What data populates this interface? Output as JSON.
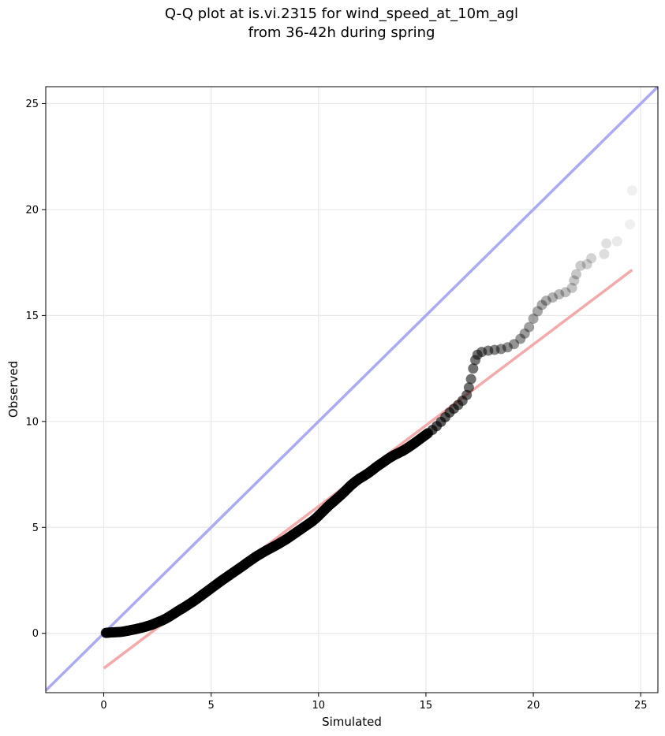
{
  "chart_data": {
    "type": "scatter",
    "title_line1": "Q-Q plot at is.vi.2315 for wind_speed_at_10m_agl",
    "title_line2": "from 36-42h during spring",
    "xlabel": "Simulated",
    "ylabel": "Observed",
    "xlim": [
      -2.7,
      25.8
    ],
    "ylim": [
      -2.8,
      25.8
    ],
    "xticks": [
      0,
      5,
      10,
      15,
      20,
      25
    ],
    "yticks": [
      0,
      5,
      10,
      15,
      20,
      25
    ],
    "grid": true,
    "colors": {
      "points": "#000000",
      "identity_line": "#aaaaf5",
      "fit_line": "#f5aaaa",
      "grid": "#e8e8e8"
    },
    "identity_line": {
      "x": [
        -2.7,
        25.8
      ],
      "y": [
        -2.7,
        25.8
      ]
    },
    "fit_line": {
      "x": [
        0.0,
        24.6
      ],
      "y": [
        -1.65,
        17.15
      ]
    },
    "quantiles": [
      [
        0.1,
        0.02
      ],
      [
        0.3,
        0.04
      ],
      [
        0.5,
        0.05
      ],
      [
        0.7,
        0.06
      ],
      [
        0.9,
        0.08
      ],
      [
        1.1,
        0.12
      ],
      [
        1.3,
        0.16
      ],
      [
        1.5,
        0.2
      ],
      [
        1.7,
        0.25
      ],
      [
        1.9,
        0.3
      ],
      [
        2.1,
        0.36
      ],
      [
        2.3,
        0.43
      ],
      [
        2.5,
        0.52
      ],
      [
        2.7,
        0.6
      ],
      [
        2.9,
        0.7
      ],
      [
        3.1,
        0.82
      ],
      [
        3.3,
        0.95
      ],
      [
        3.5,
        1.08
      ],
      [
        3.7,
        1.2
      ],
      [
        3.9,
        1.33
      ],
      [
        4.1,
        1.46
      ],
      [
        4.3,
        1.6
      ],
      [
        4.5,
        1.75
      ],
      [
        4.7,
        1.9
      ],
      [
        4.9,
        2.05
      ],
      [
        5.1,
        2.2
      ],
      [
        5.3,
        2.35
      ],
      [
        5.5,
        2.5
      ],
      [
        5.7,
        2.64
      ],
      [
        5.9,
        2.78
      ],
      [
        6.1,
        2.92
      ],
      [
        6.3,
        3.06
      ],
      [
        6.5,
        3.2
      ],
      [
        6.7,
        3.35
      ],
      [
        6.9,
        3.49
      ],
      [
        7.1,
        3.63
      ],
      [
        7.3,
        3.75
      ],
      [
        7.5,
        3.87
      ],
      [
        7.7,
        3.98
      ],
      [
        7.9,
        4.09
      ],
      [
        8.1,
        4.2
      ],
      [
        8.3,
        4.32
      ],
      [
        8.5,
        4.44
      ],
      [
        8.7,
        4.58
      ],
      [
        8.9,
        4.72
      ],
      [
        9.1,
        4.86
      ],
      [
        9.3,
        5.0
      ],
      [
        9.5,
        5.14
      ],
      [
        9.7,
        5.28
      ],
      [
        9.9,
        5.45
      ],
      [
        10.1,
        5.65
      ],
      [
        10.3,
        5.85
      ],
      [
        10.5,
        6.05
      ],
      [
        10.7,
        6.22
      ],
      [
        10.9,
        6.4
      ],
      [
        11.1,
        6.58
      ],
      [
        11.3,
        6.78
      ],
      [
        11.5,
        6.98
      ],
      [
        11.7,
        7.15
      ],
      [
        11.9,
        7.3
      ],
      [
        12.1,
        7.42
      ],
      [
        12.3,
        7.55
      ],
      [
        12.5,
        7.7
      ],
      [
        12.7,
        7.86
      ],
      [
        12.9,
        8.0
      ],
      [
        13.1,
        8.14
      ],
      [
        13.3,
        8.28
      ],
      [
        13.5,
        8.4
      ],
      [
        13.7,
        8.5
      ],
      [
        13.9,
        8.6
      ],
      [
        14.1,
        8.72
      ],
      [
        14.3,
        8.86
      ],
      [
        14.5,
        9.0
      ],
      [
        14.7,
        9.15
      ],
      [
        14.9,
        9.3
      ],
      [
        15.1,
        9.45
      ],
      [
        15.3,
        9.6
      ],
      [
        15.5,
        9.78
      ],
      [
        15.7,
        9.98
      ],
      [
        15.9,
        10.2
      ],
      [
        16.1,
        10.42
      ],
      [
        16.3,
        10.6
      ],
      [
        16.5,
        10.78
      ],
      [
        16.7,
        10.98
      ],
      [
        16.9,
        11.25
      ],
      [
        17.0,
        11.6
      ],
      [
        17.1,
        12.0
      ],
      [
        17.2,
        12.5
      ],
      [
        17.3,
        12.9
      ],
      [
        17.4,
        13.15
      ],
      [
        17.6,
        13.28
      ],
      [
        17.9,
        13.34
      ],
      [
        18.2,
        13.38
      ],
      [
        18.5,
        13.42
      ],
      [
        18.8,
        13.5
      ],
      [
        19.1,
        13.65
      ],
      [
        19.4,
        13.9
      ],
      [
        19.6,
        14.15
      ],
      [
        19.8,
        14.45
      ],
      [
        20.0,
        14.85
      ],
      [
        20.2,
        15.2
      ],
      [
        20.4,
        15.5
      ],
      [
        20.6,
        15.7
      ],
      [
        20.9,
        15.85
      ],
      [
        21.2,
        16.0
      ],
      [
        21.5,
        16.1
      ],
      [
        21.8,
        16.3
      ],
      [
        21.9,
        16.65
      ],
      [
        22.0,
        16.95
      ],
      [
        22.2,
        17.35
      ],
      [
        22.5,
        17.42
      ],
      [
        22.7,
        17.7
      ],
      [
        23.3,
        17.9
      ],
      [
        23.4,
        18.4
      ],
      [
        23.9,
        18.5
      ],
      [
        24.5,
        19.3
      ],
      [
        24.6,
        20.9
      ]
    ]
  }
}
